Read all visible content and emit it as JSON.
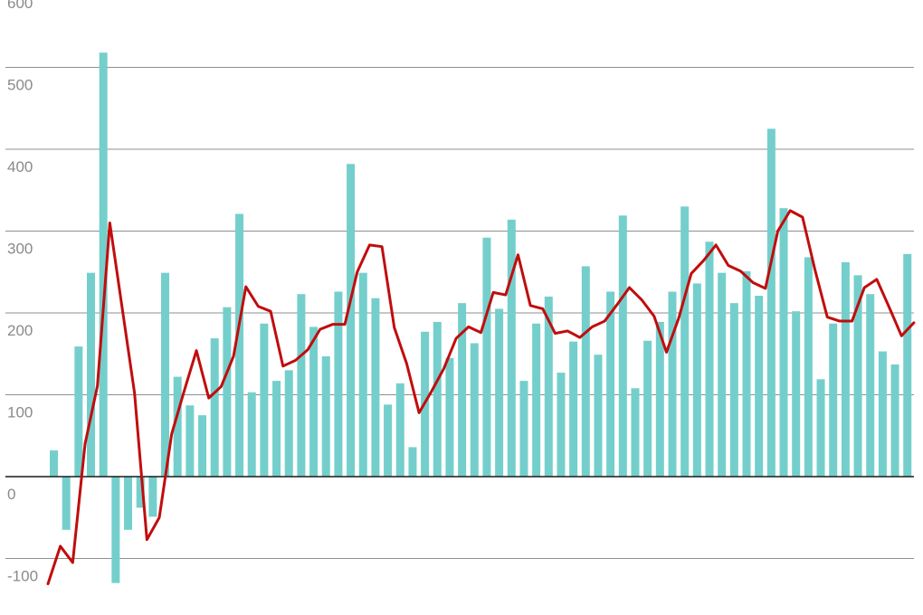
{
  "chart_data": {
    "type": "bar",
    "title": "",
    "xlabel": "",
    "ylabel": "",
    "ylim": [
      -130,
      600
    ],
    "yticks": [
      -100,
      0,
      100,
      200,
      300,
      400,
      500,
      600
    ],
    "ytick_labels": [
      "-100",
      "0",
      "100",
      "200",
      "300",
      "400",
      "500",
      "600"
    ],
    "grid": true,
    "legend": "none",
    "colors": {
      "bars": "#74cfcc",
      "line": "#c00d0d",
      "grid": "#8f8f8f",
      "zero_line": "#1a1a1a",
      "tick_text": "#8a8a8a"
    },
    "series": [
      {
        "kind": "bar",
        "values": [
          32,
          -65,
          159,
          249,
          518,
          -130,
          -65,
          -38,
          -49,
          249,
          122,
          87,
          75,
          169,
          207,
          321,
          103,
          187,
          117,
          130,
          223,
          183,
          147,
          226,
          382,
          249,
          218,
          88,
          114,
          36,
          177,
          189,
          145,
          212,
          163,
          292,
          205,
          314,
          117,
          187,
          220,
          127,
          165,
          257,
          149,
          226,
          319,
          108,
          166,
          189,
          226,
          330,
          236,
          287,
          249,
          212,
          251,
          221,
          425,
          328,
          202,
          268,
          119,
          187,
          262,
          246,
          223,
          153,
          137,
          272
        ]
      },
      {
        "kind": "line",
        "values": [
          -131,
          -85,
          -105,
          40,
          111,
          310,
          206,
          102,
          -77,
          -50,
          52,
          104,
          154,
          96,
          110,
          147,
          232,
          208,
          202,
          135,
          142,
          155,
          180,
          186,
          186,
          250,
          283,
          281,
          182,
          138,
          78,
          104,
          132,
          169,
          183,
          176,
          225,
          222,
          271,
          209,
          205,
          175,
          178,
          170,
          183,
          190,
          210,
          231,
          216,
          196,
          152,
          194,
          248,
          264,
          283,
          258,
          251,
          237,
          230,
          300,
          325,
          317,
          253,
          195,
          190,
          190,
          231,
          241,
          207,
          172,
          188
        ]
      }
    ]
  }
}
